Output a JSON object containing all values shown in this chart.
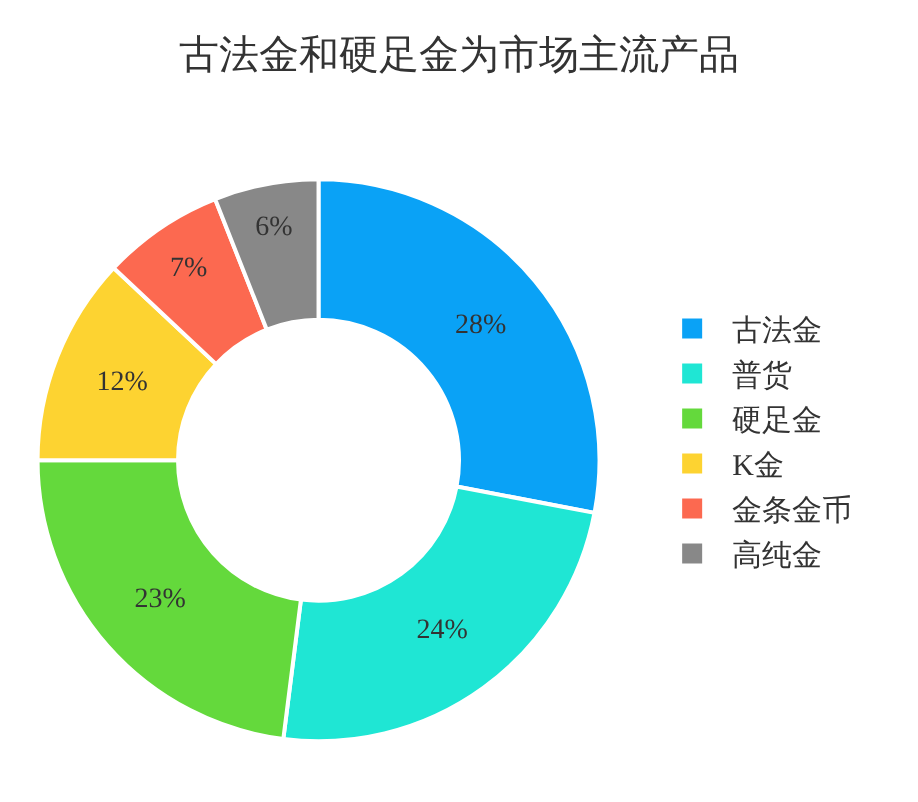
{
  "chart_data": {
    "type": "donut",
    "title": "古法金和硬足金为市场主流产品",
    "categories": [
      "古法金",
      "普货",
      "硬足金",
      "K金",
      "金条金币",
      "高纯金"
    ],
    "values": [
      28,
      24,
      23,
      12,
      7,
      6
    ],
    "colors": [
      "#0aa2f6",
      "#1fe6d4",
      "#64d93c",
      "#fdd331",
      "#fc6950",
      "#888888"
    ],
    "value_labels": [
      "28%",
      "24%",
      "23%",
      "12%",
      "7%",
      "6%"
    ],
    "legend": "right"
  }
}
